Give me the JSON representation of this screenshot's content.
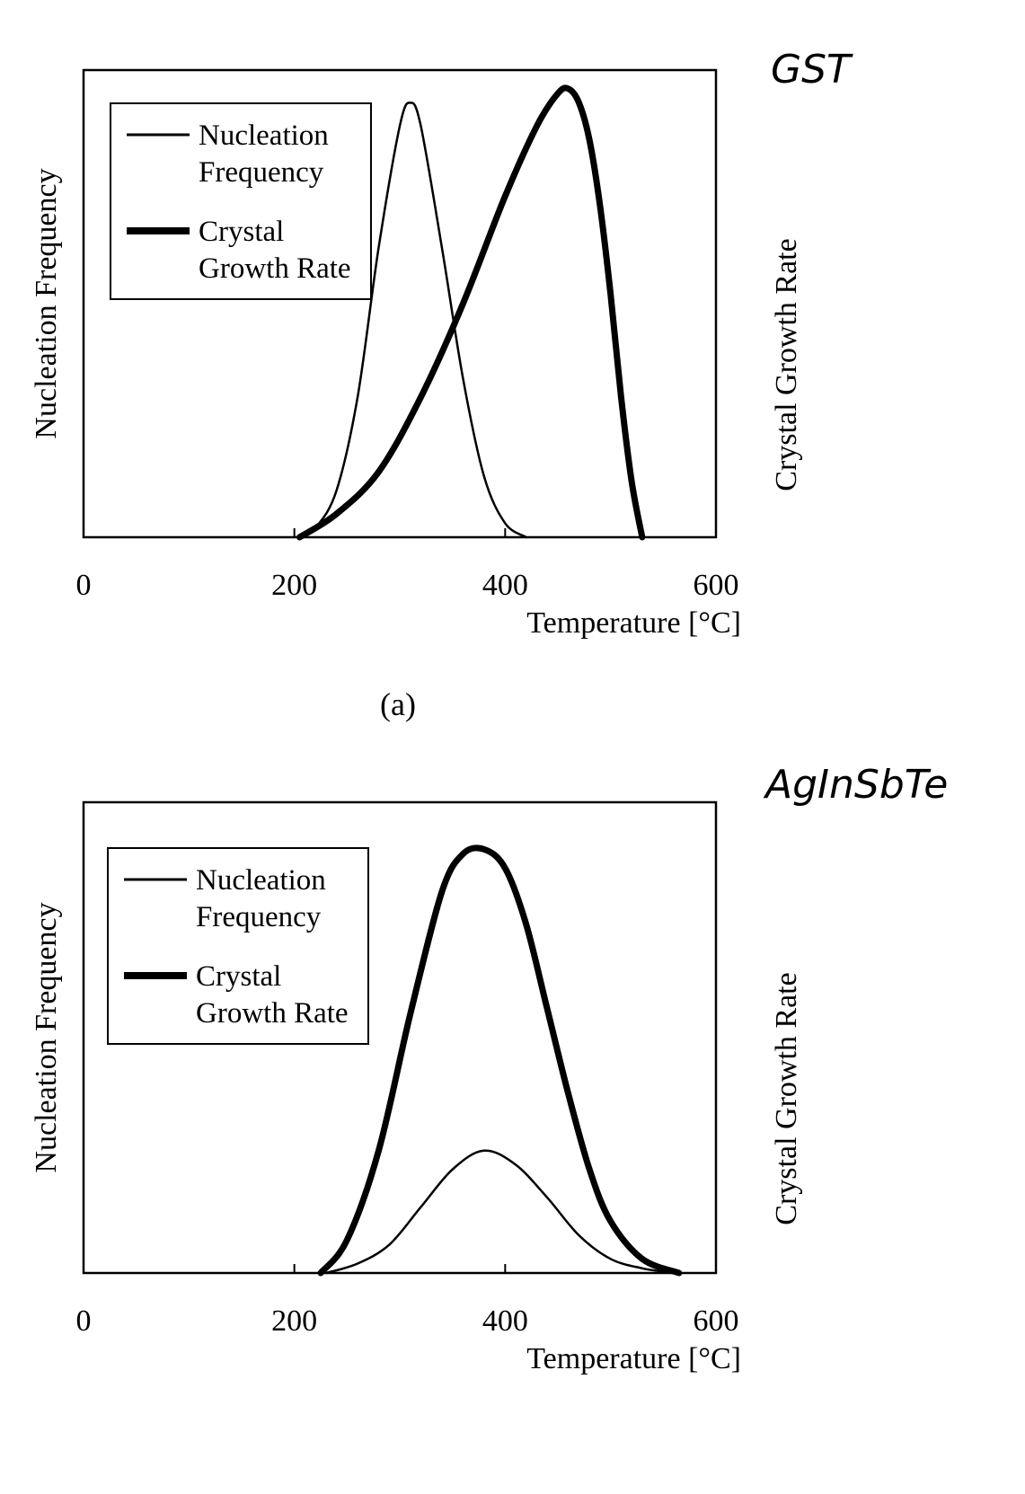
{
  "chart_data": [
    {
      "type": "line",
      "panel_label": "(a)",
      "annotation": "GST",
      "xlabel": "Temperature [°C]",
      "ylabel_left": "Nucleation Frequency",
      "ylabel_right": "Crystal Growth Rate",
      "xlim": [
        0,
        600
      ],
      "ylim": [
        0,
        1
      ],
      "xticks": [
        "0",
        "200",
        "400",
        "600"
      ],
      "grid": false,
      "legend_position": "top-left",
      "legend": [
        "Nucleation Frequency",
        "Crystal Growth Rate"
      ],
      "series": [
        {
          "name": "Nucleation Frequency",
          "x": [
            205,
            220,
            240,
            260,
            280,
            300,
            310,
            320,
            340,
            360,
            380,
            400,
            420
          ],
          "y": [
            0.0,
            0.02,
            0.1,
            0.3,
            0.62,
            0.88,
            0.93,
            0.88,
            0.62,
            0.34,
            0.13,
            0.03,
            0.0
          ]
        },
        {
          "name": "Crystal Growth Rate",
          "x": [
            205,
            240,
            280,
            320,
            360,
            400,
            430,
            450,
            460,
            470,
            480,
            490,
            500,
            510,
            520,
            530
          ],
          "y": [
            0.0,
            0.05,
            0.14,
            0.3,
            0.5,
            0.73,
            0.88,
            0.95,
            0.96,
            0.93,
            0.85,
            0.71,
            0.52,
            0.3,
            0.12,
            0.0
          ]
        }
      ]
    },
    {
      "type": "line",
      "annotation": "AgInSbTe",
      "xlabel": "Temperature [°C]",
      "ylabel_left": "Nucleation Frequency",
      "ylabel_right": "Crystal Growth Rate",
      "xlim": [
        0,
        600
      ],
      "ylim": [
        0,
        1
      ],
      "xticks": [
        "0",
        "200",
        "400",
        "600"
      ],
      "grid": false,
      "legend_position": "top-left",
      "legend": [
        "Nucleation Frequency",
        "Crystal Growth Rate"
      ],
      "series": [
        {
          "name": "Nucleation Frequency",
          "x": [
            230,
            260,
            290,
            320,
            350,
            380,
            410,
            440,
            470,
            500,
            530,
            560
          ],
          "y": [
            0.0,
            0.02,
            0.06,
            0.14,
            0.22,
            0.26,
            0.23,
            0.16,
            0.08,
            0.03,
            0.01,
            0.0
          ]
        },
        {
          "name": "Crystal Growth Rate",
          "x": [
            225,
            250,
            280,
            310,
            340,
            360,
            380,
            400,
            420,
            440,
            460,
            480,
            500,
            530,
            565
          ],
          "y": [
            0.0,
            0.07,
            0.26,
            0.55,
            0.81,
            0.89,
            0.9,
            0.86,
            0.74,
            0.56,
            0.38,
            0.22,
            0.11,
            0.03,
            0.0
          ]
        }
      ]
    }
  ]
}
